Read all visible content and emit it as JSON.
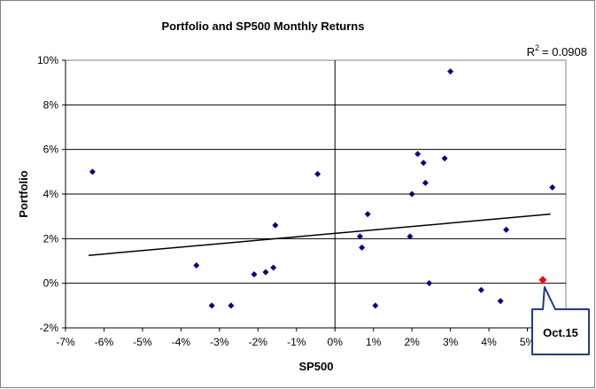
{
  "chart_data": {
    "type": "scatter",
    "title": "Portfolio and SP500 Monthly Returns",
    "xlabel": "SP500",
    "ylabel": "Portfolio",
    "xlim": [
      -7,
      6
    ],
    "ylim": [
      -2,
      10
    ],
    "x_ticks": [
      "-7%",
      "-6%",
      "-5%",
      "-4%",
      "-3%",
      "-2%",
      "-1%",
      "0%",
      "1%",
      "2%",
      "3%",
      "4%",
      "5%"
    ],
    "y_ticks": [
      "-2%",
      "0%",
      "2%",
      "4%",
      "6%",
      "8%",
      "10%"
    ],
    "grid": "horizontal",
    "r_squared_label": "= 0.0908",
    "r_squared_prefix": "R",
    "r_squared_sup": "2",
    "series": [
      {
        "color": "#000080",
        "marker": "diamond",
        "points": [
          [
            -6.3,
            5.0
          ],
          [
            -3.6,
            0.8
          ],
          [
            -3.2,
            -1.0
          ],
          [
            -2.7,
            -1.0
          ],
          [
            -2.1,
            0.4
          ],
          [
            -1.8,
            0.5
          ],
          [
            -1.6,
            0.7
          ],
          [
            -1.55,
            2.6
          ],
          [
            -0.45,
            4.9
          ],
          [
            0.65,
            2.1
          ],
          [
            0.7,
            1.6
          ],
          [
            0.85,
            3.1
          ],
          [
            1.05,
            -1.0
          ],
          [
            1.95,
            2.1
          ],
          [
            2.0,
            4.0
          ],
          [
            2.15,
            5.8
          ],
          [
            2.3,
            5.4
          ],
          [
            2.35,
            4.5
          ],
          [
            2.45,
            0.0
          ],
          [
            2.85,
            5.6
          ],
          [
            3.0,
            9.5
          ],
          [
            3.8,
            -0.3
          ],
          [
            4.3,
            -0.8
          ],
          [
            4.45,
            2.4
          ],
          [
            5.65,
            4.3
          ]
        ]
      }
    ],
    "highlight": {
      "x": 5.4,
      "y": 0.15,
      "color": "#ff0000",
      "label": "Oct.15"
    },
    "trendline": {
      "x": [
        -6.4,
        5.6
      ],
      "y": [
        1.25,
        3.1
      ],
      "color": "#000000"
    }
  }
}
